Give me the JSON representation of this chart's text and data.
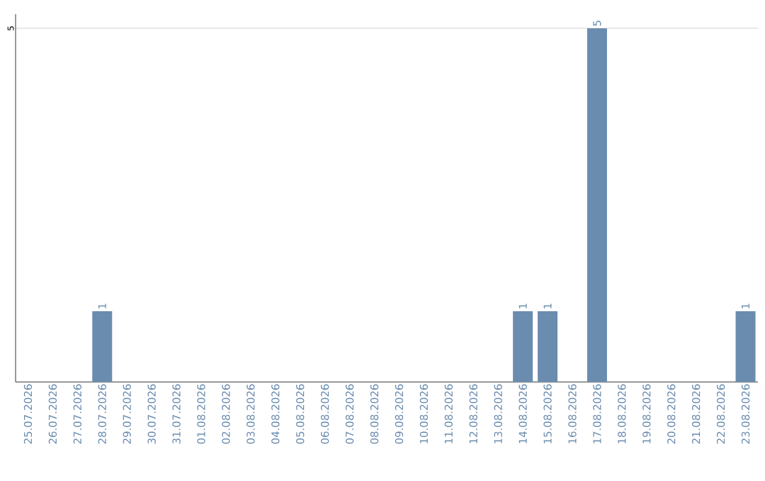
{
  "chart_data": {
    "type": "bar",
    "categories": [
      "25.07.2026",
      "26.07.2026",
      "27.07.2026",
      "28.07.2026",
      "29.07.2026",
      "30.07.2026",
      "31.07.2026",
      "01.08.2026",
      "02.08.2026",
      "03.08.2026",
      "04.08.2026",
      "05.08.2026",
      "06.08.2026",
      "07.08.2026",
      "08.08.2026",
      "09.08.2026",
      "10.08.2026",
      "11.08.2026",
      "12.08.2026",
      "13.08.2026",
      "14.08.2026",
      "15.08.2026",
      "16.08.2026",
      "17.08.2026",
      "18.08.2026",
      "19.08.2026",
      "20.08.2026",
      "21.08.2026",
      "22.08.2026",
      "23.08.2026"
    ],
    "values": [
      0,
      0,
      0,
      1,
      0,
      0,
      0,
      0,
      0,
      0,
      0,
      0,
      0,
      0,
      0,
      0,
      0,
      0,
      0,
      0,
      1,
      1,
      0,
      5,
      0,
      0,
      0,
      0,
      0,
      1
    ],
    "value_labels": [
      null,
      null,
      null,
      "1",
      null,
      null,
      null,
      null,
      null,
      null,
      null,
      null,
      null,
      null,
      null,
      null,
      null,
      null,
      null,
      null,
      "1",
      "1",
      null,
      "5",
      null,
      null,
      null,
      null,
      null,
      "1"
    ],
    "color": "#6a8caf",
    "ylim": [
      0,
      5.2
    ],
    "yticks": [
      5
    ],
    "grid": "y"
  }
}
